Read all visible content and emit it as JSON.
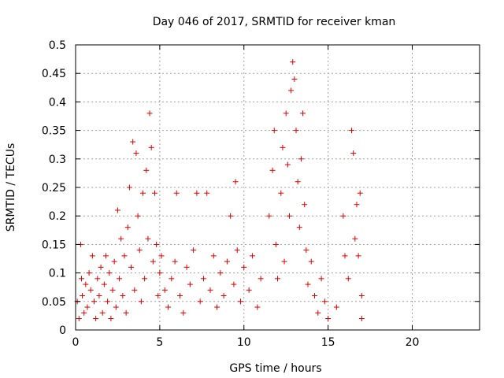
{
  "chart_data": {
    "type": "scatter",
    "title": "Day 046 of 2017, SRMTID for receiver kman",
    "xlabel": "GPS time / hours",
    "ylabel": "SRMTID / TECUs",
    "xlim": [
      0,
      24
    ],
    "ylim": [
      0,
      0.5
    ],
    "x_ticks": [
      "0",
      "5",
      "10",
      "15",
      "20"
    ],
    "y_ticks": [
      "0",
      "0.05",
      "0.1",
      "0.15",
      "0.2",
      "0.25",
      "0.3",
      "0.35",
      "0.4",
      "0.45",
      "0.5"
    ],
    "grid": true,
    "marker": "plus",
    "color": "#dd0000",
    "points": [
      [
        0.1,
        0.05
      ],
      [
        0.2,
        0.02
      ],
      [
        0.3,
        0.15
      ],
      [
        0.35,
        0.09
      ],
      [
        0.4,
        0.06
      ],
      [
        0.5,
        0.03
      ],
      [
        0.6,
        0.08
      ],
      [
        0.7,
        0.04
      ],
      [
        0.8,
        0.1
      ],
      [
        0.9,
        0.07
      ],
      [
        1.0,
        0.13
      ],
      [
        1.1,
        0.05
      ],
      [
        1.2,
        0.02
      ],
      [
        1.3,
        0.09
      ],
      [
        1.4,
        0.06
      ],
      [
        1.5,
        0.11
      ],
      [
        1.6,
        0.03
      ],
      [
        1.7,
        0.08
      ],
      [
        1.8,
        0.13
      ],
      [
        1.9,
        0.05
      ],
      [
        2.0,
        0.1
      ],
      [
        2.1,
        0.02
      ],
      [
        2.2,
        0.07
      ],
      [
        2.3,
        0.12
      ],
      [
        2.4,
        0.04
      ],
      [
        2.5,
        0.21
      ],
      [
        2.6,
        0.09
      ],
      [
        2.7,
        0.16
      ],
      [
        2.8,
        0.06
      ],
      [
        2.9,
        0.13
      ],
      [
        3.0,
        0.03
      ],
      [
        3.1,
        0.18
      ],
      [
        3.2,
        0.25
      ],
      [
        3.3,
        0.11
      ],
      [
        3.4,
        0.33
      ],
      [
        3.5,
        0.07
      ],
      [
        3.6,
        0.31
      ],
      [
        3.7,
        0.2
      ],
      [
        3.8,
        0.14
      ],
      [
        3.9,
        0.05
      ],
      [
        4.0,
        0.24
      ],
      [
        4.1,
        0.09
      ],
      [
        4.2,
        0.28
      ],
      [
        4.3,
        0.16
      ],
      [
        4.4,
        0.38
      ],
      [
        4.5,
        0.32
      ],
      [
        4.6,
        0.12
      ],
      [
        4.7,
        0.24
      ],
      [
        4.8,
        0.15
      ],
      [
        4.9,
        0.06
      ],
      [
        5.0,
        0.1
      ],
      [
        5.1,
        0.13
      ],
      [
        5.3,
        0.07
      ],
      [
        5.5,
        0.04
      ],
      [
        5.7,
        0.09
      ],
      [
        5.9,
        0.12
      ],
      [
        6.0,
        0.24
      ],
      [
        6.2,
        0.06
      ],
      [
        6.4,
        0.03
      ],
      [
        6.6,
        0.11
      ],
      [
        6.8,
        0.08
      ],
      [
        7.0,
        0.14
      ],
      [
        7.2,
        0.24
      ],
      [
        7.4,
        0.05
      ],
      [
        7.6,
        0.09
      ],
      [
        7.8,
        0.24
      ],
      [
        8.0,
        0.07
      ],
      [
        8.2,
        0.13
      ],
      [
        8.4,
        0.04
      ],
      [
        8.6,
        0.1
      ],
      [
        8.8,
        0.06
      ],
      [
        9.0,
        0.12
      ],
      [
        9.2,
        0.2
      ],
      [
        9.4,
        0.08
      ],
      [
        9.5,
        0.26
      ],
      [
        9.6,
        0.14
      ],
      [
        9.8,
        0.05
      ],
      [
        10.0,
        0.11
      ],
      [
        10.3,
        0.07
      ],
      [
        10.5,
        0.13
      ],
      [
        10.8,
        0.04
      ],
      [
        11.0,
        0.09
      ],
      [
        11.5,
        0.2
      ],
      [
        11.7,
        0.28
      ],
      [
        11.8,
        0.35
      ],
      [
        11.9,
        0.15
      ],
      [
        12.0,
        0.09
      ],
      [
        12.2,
        0.24
      ],
      [
        12.3,
        0.32
      ],
      [
        12.4,
        0.12
      ],
      [
        12.5,
        0.38
      ],
      [
        12.6,
        0.29
      ],
      [
        12.7,
        0.2
      ],
      [
        12.8,
        0.42
      ],
      [
        12.9,
        0.47
      ],
      [
        13.0,
        0.44
      ],
      [
        13.1,
        0.35
      ],
      [
        13.2,
        0.26
      ],
      [
        13.3,
        0.18
      ],
      [
        13.4,
        0.3
      ],
      [
        13.5,
        0.38
      ],
      [
        13.6,
        0.22
      ],
      [
        13.7,
        0.14
      ],
      [
        13.8,
        0.08
      ],
      [
        14.0,
        0.12
      ],
      [
        14.2,
        0.06
      ],
      [
        14.4,
        0.03
      ],
      [
        14.6,
        0.09
      ],
      [
        14.8,
        0.05
      ],
      [
        15.0,
        0.02
      ],
      [
        15.5,
        0.04
      ],
      [
        15.9,
        0.2
      ],
      [
        16.0,
        0.13
      ],
      [
        16.2,
        0.09
      ],
      [
        16.4,
        0.35
      ],
      [
        16.5,
        0.31
      ],
      [
        16.6,
        0.16
      ],
      [
        16.7,
        0.22
      ],
      [
        16.8,
        0.13
      ],
      [
        16.9,
        0.24
      ],
      [
        17.0,
        0.06
      ],
      [
        17.0,
        0.02
      ]
    ]
  }
}
